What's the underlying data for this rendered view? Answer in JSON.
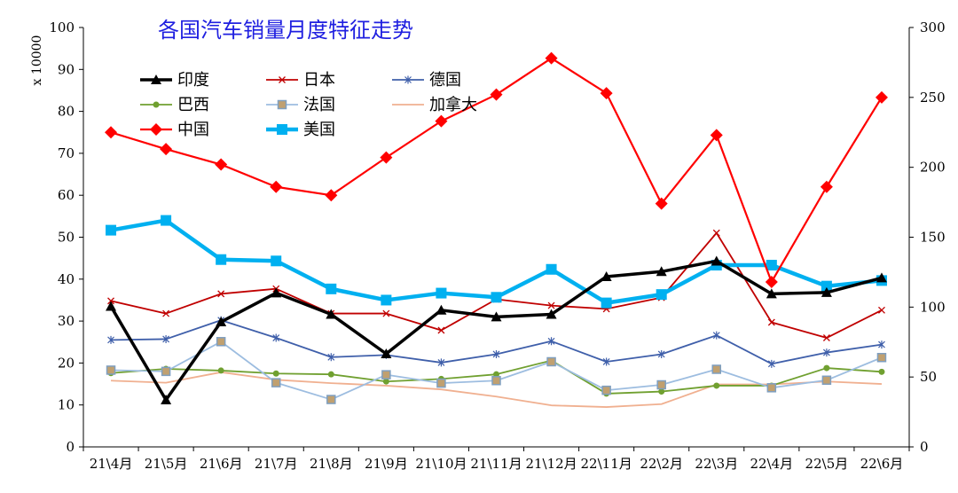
{
  "chart_data": {
    "type": "line",
    "title": "各国汽车销量月度特征走势",
    "y_unit_label": "x 10000",
    "categories": [
      "21\\4月",
      "21\\5月",
      "21\\6月",
      "21\\7月",
      "21\\8月",
      "21\\9月",
      "21\\10月",
      "21\\11月",
      "21\\12月",
      "22\\11月",
      "22\\2月",
      "22\\3月",
      "22\\4月",
      "22\\5月",
      "22\\6月"
    ],
    "ylim": [
      0,
      100
    ],
    "y_ticks": [
      "0",
      "10",
      "20",
      "30",
      "40",
      "50",
      "60",
      "70",
      "80",
      "90",
      "100"
    ],
    "y2lim": [
      0,
      300
    ],
    "y2_ticks": [
      "0",
      "50",
      "100",
      "150",
      "200",
      "250",
      "300"
    ],
    "grid": false,
    "legend_position": "top-left",
    "series": [
      {
        "name": "印度",
        "axis": "left",
        "color": "#000000",
        "marker": "triangle",
        "values": [
          33.5,
          11.2,
          29.8,
          36.7,
          31.6,
          22.2,
          32.6,
          31.0,
          31.6,
          40.6,
          41.8,
          44.3,
          36.5,
          36.8,
          40.3
        ]
      },
      {
        "name": "日本",
        "axis": "left",
        "color": "#c00000",
        "marker": "x",
        "values": [
          34.8,
          31.8,
          36.5,
          37.7,
          31.8,
          31.8,
          27.8,
          35.2,
          33.7,
          32.9,
          35.6,
          51.0,
          29.7,
          26.0,
          32.6
        ]
      },
      {
        "name": "德国",
        "axis": "left",
        "color": "#3f5faa",
        "marker": "star",
        "values": [
          25.5,
          25.7,
          30.2,
          26.0,
          21.4,
          21.9,
          20.1,
          22.1,
          25.2,
          20.3,
          22.1,
          26.6,
          19.8,
          22.5,
          24.4
        ]
      },
      {
        "name": "巴西",
        "axis": "left",
        "color": "#70a030",
        "marker": "dot",
        "values": [
          17.6,
          18.6,
          18.2,
          17.5,
          17.3,
          15.6,
          16.2,
          17.3,
          20.6,
          12.7,
          13.2,
          14.6,
          14.6,
          18.8,
          17.9
        ]
      },
      {
        "name": "法国",
        "axis": "left",
        "color": "#9dbde0",
        "marker": "square",
        "values": [
          18.3,
          18.0,
          25.1,
          15.3,
          11.3,
          17.2,
          15.2,
          15.8,
          20.3,
          13.5,
          14.8,
          18.5,
          14.1,
          15.9,
          21.3
        ]
      },
      {
        "name": "加拿大",
        "axis": "left",
        "color": "#f0b090",
        "marker": "none",
        "values": [
          15.8,
          15.3,
          17.8,
          16.0,
          15.2,
          14.6,
          13.7,
          12.0,
          9.9,
          9.5,
          10.2,
          14.9,
          14.9,
          15.6,
          15.0
        ]
      },
      {
        "name": "中国",
        "axis": "right",
        "color": "#ff0000",
        "marker": "diamond",
        "values": [
          225,
          213,
          202,
          186,
          180,
          207,
          233,
          252,
          278,
          253,
          174,
          223,
          118,
          186,
          250
        ]
      },
      {
        "name": "美国",
        "axis": "right",
        "color": "#00b0f0",
        "marker": "bigsquare",
        "values": [
          155,
          162,
          134,
          133,
          113,
          105,
          110,
          107,
          127,
          103,
          109,
          130,
          130,
          115,
          119
        ]
      }
    ]
  }
}
